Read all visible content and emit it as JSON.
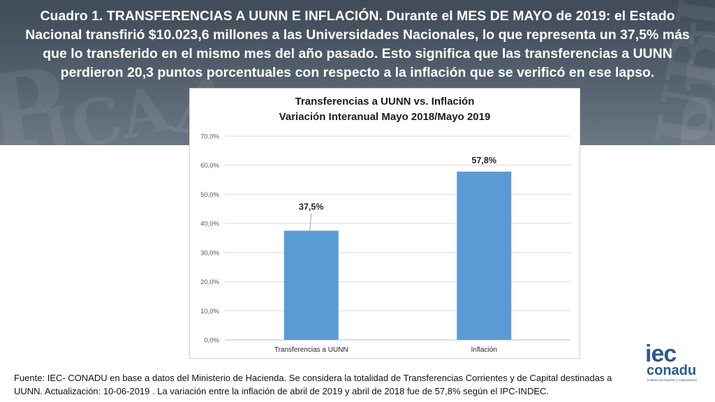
{
  "headline": "Cuadro 1. TRANSFERENCIAS A UUNN E INFLACIÓN. Durante el MES DE MAYO de 2019: el Estado Nacional transfirió $10.023,6 millones a las Universidades Nacionales, lo que representa un 37,5% más que lo transferido en el mismo mes del año pasado. Esto significa que las transferencias a UUNN perdieron 20,3 puntos porcentuales con respecto a la inflación que se verificó en ese lapso.",
  "chart_data": {
    "type": "bar",
    "title": "Transferencias a UUNN vs. Inflación",
    "subtitle": "Variación Interanual Mayo 2018/Mayo 2019",
    "categories": [
      "Transferencias a UUNN",
      "Inflación"
    ],
    "values": [
      37.5,
      57.8
    ],
    "data_labels": [
      "37,5%",
      "57,8%"
    ],
    "ylim": [
      0,
      70
    ],
    "yticks": [
      0,
      10,
      20,
      30,
      40,
      50,
      60,
      70
    ],
    "ytick_labels": [
      "0,0%",
      "10,0%",
      "20,0%",
      "30,0%",
      "40,0%",
      "50,0%",
      "60,0%",
      "70,0%"
    ],
    "grid": true,
    "legend": "none",
    "bar_color": "#5b9bd5",
    "xlabel": "",
    "ylabel": ""
  },
  "footer": "Fuente: IEC- CONADU en base a datos del Ministerio de Hacienda. Se considera la totalidad de Transferencias Corrientes y de Capital destinadas a UUNN. Actualización: 10-06-2019 . La variación entre la inflación de abril de 2019 y abril de 2018 fue de 57,8% según el IPC-INDEC.",
  "logo": {
    "top": "iec",
    "bottom": "conadu",
    "tagline": "Instituto de Estudios y Capacitación"
  }
}
